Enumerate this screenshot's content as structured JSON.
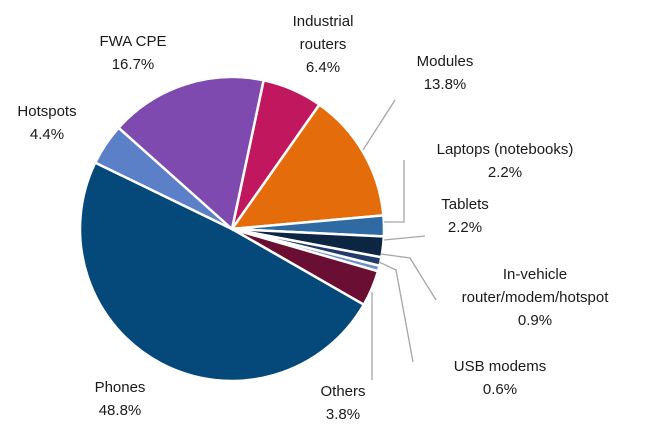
{
  "chart_data": {
    "type": "pie",
    "categories": [
      "Industrial routers",
      "Modules",
      "Laptops (notebooks)",
      "Tablets",
      "In-vehicle router/modem/hotspot",
      "USB modems",
      "Others",
      "Phones",
      "Hotspots",
      "FWA CPE"
    ],
    "values": [
      6.4,
      13.8,
      2.2,
      2.2,
      0.9,
      0.6,
      3.8,
      48.8,
      4.4,
      16.7
    ],
    "value_labels": [
      "6.4%",
      "13.8%",
      "2.2%",
      "2.2%",
      "0.9%",
      "0.6%",
      "3.8%",
      "48.8%",
      "4.4%",
      "16.7%"
    ],
    "colors": [
      "#c0175e",
      "#e46c0a",
      "#2f6aa3",
      "#0b2542",
      "#1f3a6b",
      "#6f8fc9",
      "#6a0f33",
      "#05487a",
      "#5b80c8",
      "#7e4ab0"
    ]
  }
}
